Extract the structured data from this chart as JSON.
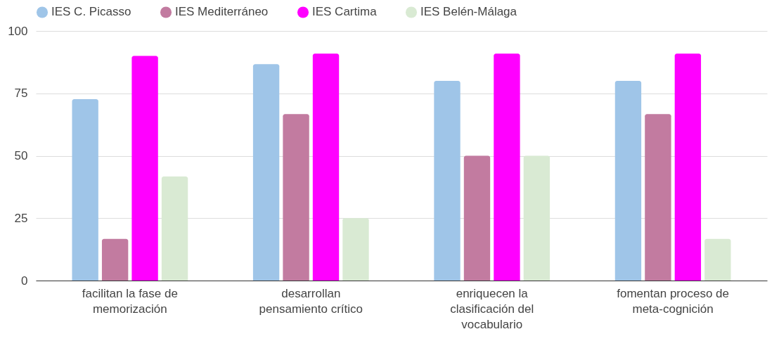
{
  "chart_data": {
    "type": "bar",
    "categories": [
      "facilitan la fase de memorización",
      "desarrollan pensamiento crítico",
      "enriquecen la clasificación del vocabulario",
      "fomentan proceso de meta-cognición"
    ],
    "series": [
      {
        "name": "IES C. Picasso",
        "color": "#9fc5e8",
        "values": [
          72.7,
          86.7,
          80,
          80
        ]
      },
      {
        "name": "IES Mediterráneo",
        "color": "#c27ba0",
        "values": [
          16.7,
          66.7,
          50,
          66.7
        ]
      },
      {
        "name": "IES Cartima",
        "color": "#ff00ff",
        "values": [
          90,
          90.9,
          90.9,
          90.9
        ]
      },
      {
        "name": "IES Belén-Málaga",
        "color": "#d9ead3",
        "values": [
          41.7,
          25,
          50,
          16.7
        ]
      }
    ],
    "ylim": [
      0,
      100
    ],
    "yticks": [
      0,
      25,
      50,
      75,
      100
    ],
    "grid": "y",
    "legend": "top"
  }
}
